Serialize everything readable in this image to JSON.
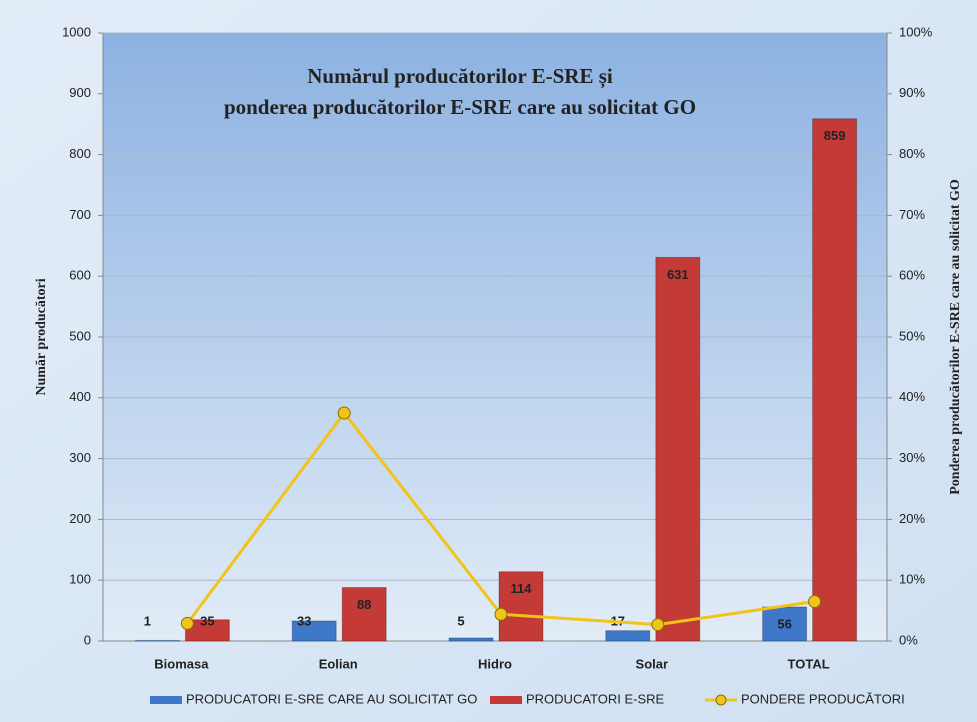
{
  "chart_data": {
    "type": "bar",
    "title": [
      "Numărul producătorilor  E-SRE și",
      "ponderea producătorilor E-SRE  care au solicitat GO"
    ],
    "y_label": "Număr producători",
    "y2_label": "Ponderea producătorilor  E-SRE care au solicitat GO",
    "categories": [
      "Biomasa",
      "Eolian",
      "Hidro",
      "Solar",
      "TOTAL"
    ],
    "series": [
      {
        "name": "PRODUCATORI E-SRE CARE AU SOLICITAT GO",
        "color": "#3f78c8",
        "values": [
          1,
          33,
          5,
          17,
          56
        ]
      },
      {
        "name": "PRODUCATORI E-SRE",
        "color": "#c43a36",
        "values": [
          35,
          88,
          114,
          631,
          859
        ]
      },
      {
        "name": "PONDERE PRODUCĂTORI",
        "color": "#f0c419",
        "type": "line",
        "axis": "y2",
        "values": [
          2.9,
          37.5,
          4.4,
          2.7,
          6.5
        ]
      }
    ],
    "ylim": [
      0,
      1000
    ],
    "yticks": [
      0,
      100,
      200,
      300,
      400,
      500,
      600,
      700,
      800,
      900,
      1000
    ],
    "y2lim": [
      0,
      100
    ],
    "y2ticks": [
      {
        "value": 0,
        "label": "0%"
      },
      {
        "value": 10,
        "label": "10%"
      },
      {
        "value": 20,
        "label": "20%"
      },
      {
        "value": 30,
        "label": "30%"
      },
      {
        "value": 40,
        "label": "40%"
      },
      {
        "value": 50,
        "label": "50%"
      },
      {
        "value": 60,
        "label": "60%"
      },
      {
        "value": 70,
        "label": "70%"
      },
      {
        "value": 80,
        "label": "80%"
      },
      {
        "value": 90,
        "label": "90%"
      },
      {
        "value": 100,
        "label": "100%"
      }
    ],
    "grid": true,
    "legend": "bottom"
  }
}
